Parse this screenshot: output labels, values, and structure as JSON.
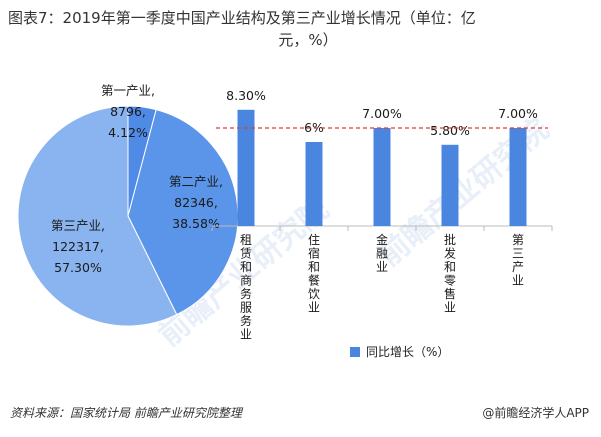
{
  "title_line1": "图表7：2019年第一季度中国产业结构及第三产业增长情况（单位：亿",
  "title_line2": "元，%）",
  "source": "资料来源：国家统计局 前瞻产业研究院整理",
  "brand": "@前瞻经济学人APP",
  "watermark": "前瞻产业研究院",
  "colors": {
    "pie1": "#4f8ae6",
    "pie2": "#5b95ea",
    "pie3": "#8ab4f0",
    "bar": "#4a86e0",
    "ref": "#e03b3b"
  },
  "chart_data": [
    {
      "type": "pie",
      "slices": [
        {
          "label": "第一产业,",
          "value": 8796,
          "value_text": "8796,",
          "pct_text": "4.12%"
        },
        {
          "label": "第二产业,",
          "value": 82346,
          "value_text": "82346,",
          "pct_text": "38.58%"
        },
        {
          "label": "第三产业,",
          "value": 122317,
          "value_text": "122317,",
          "pct_text": "57.30%"
        }
      ]
    },
    {
      "type": "bar",
      "categories": [
        "租赁和商务服务业",
        "住宿和餐饮业",
        "金融业",
        "批发和零售业",
        "第三产业"
      ],
      "values": [
        8.3,
        6.0,
        7.0,
        5.8,
        7.0
      ],
      "value_labels": [
        "8.30%",
        "6%",
        "7.00%",
        "5.80%",
        "7.00%"
      ],
      "series": [
        {
          "name": "同比增长（%）",
          "values": [
            8.3,
            6.0,
            7.0,
            5.8,
            7.0
          ]
        }
      ],
      "reference_line": 7.0,
      "ylim": [
        0,
        10
      ]
    }
  ]
}
